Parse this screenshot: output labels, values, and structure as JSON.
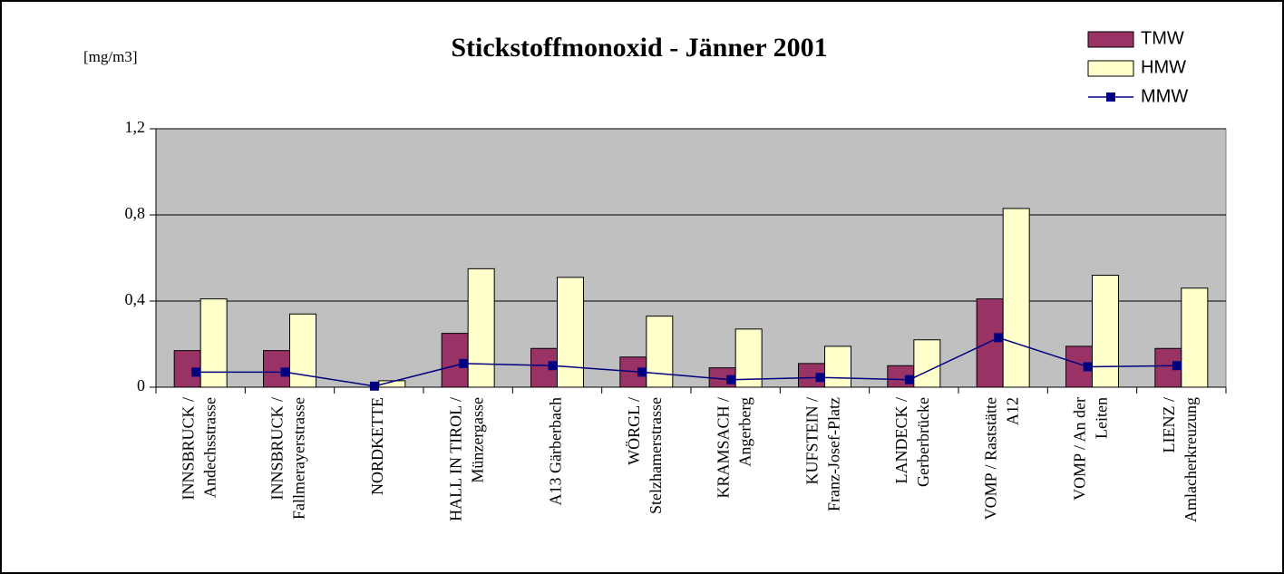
{
  "chart_data": {
    "type": "bar",
    "title": "Stickstoffmonoxid - Jänner 2001",
    "y_label": "[mg/m3]",
    "categories": [
      [
        "INNSBRUCK /",
        "Andechsstrasse"
      ],
      [
        "INNSBRUCK /",
        "Fallmerayerstrasse"
      ],
      [
        "NORDKETTE"
      ],
      [
        "HALL IN TIROL /",
        "Münzergasse"
      ],
      [
        "A13 Gärberbach"
      ],
      [
        "WÖRGL /",
        "Stelzhamerstrasse"
      ],
      [
        "KRAMSACH /",
        "Angerberg"
      ],
      [
        "KUFSTEIN /",
        "Franz-Josef-Platz"
      ],
      [
        "LANDECK /",
        "Gerberbrücke"
      ],
      [
        "VOMP / Raststätte",
        "A12"
      ],
      [
        "VOMP / An der",
        "Leiten"
      ],
      [
        "LIENZ /",
        "Amlacherkreuzung"
      ]
    ],
    "series": [
      {
        "name": "TMW",
        "type": "bar",
        "color": "#993366",
        "values": [
          0.17,
          0.17,
          0.0,
          0.25,
          0.18,
          0.14,
          0.09,
          0.11,
          0.1,
          0.41,
          0.19,
          0.18
        ]
      },
      {
        "name": "HMW",
        "type": "bar",
        "color": "#ffffcc",
        "values": [
          0.41,
          0.34,
          0.03,
          0.55,
          0.51,
          0.33,
          0.27,
          0.19,
          0.22,
          0.83,
          0.52,
          0.46
        ]
      },
      {
        "name": "MMW",
        "type": "line",
        "color": "#000080",
        "values": [
          0.07,
          0.07,
          0.005,
          0.11,
          0.1,
          0.07,
          0.035,
          0.045,
          0.035,
          0.23,
          0.095,
          0.1
        ]
      }
    ],
    "ylim": [
      0,
      1.2
    ],
    "yticks": [
      0,
      {
        "value": 0.4,
        "label": "0,4"
      },
      {
        "value": 0.8,
        "label": "0,8"
      },
      {
        "value": 1.2,
        "label": "1,2"
      }
    ],
    "grid": true,
    "legend": "top-right"
  }
}
